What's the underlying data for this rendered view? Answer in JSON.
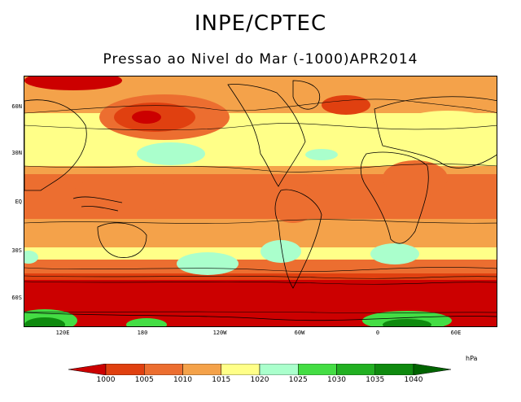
{
  "header": {
    "title": "INPE/CPTEC",
    "subtitle": "Pressao ao Nivel do Mar (-1000)APR2014"
  },
  "map": {
    "lat_ticks": [
      "60N",
      "30N",
      "EQ",
      "30S",
      "60S"
    ],
    "lon_ticks": [
      "120E",
      "180",
      "120W",
      "60W",
      "0",
      "60E"
    ]
  },
  "colorbar": {
    "unit": "hPa",
    "levels": [
      "1000",
      "1005",
      "1010",
      "1015",
      "1020",
      "1025",
      "1030",
      "1035",
      "1040"
    ],
    "colors": [
      "#cc0000",
      "#e04010",
      "#ec6e30",
      "#f4a24a",
      "#ffff88",
      "#aaffcc",
      "#44dd44",
      "#22b022",
      "#0f8a0f",
      "#006400"
    ]
  }
}
